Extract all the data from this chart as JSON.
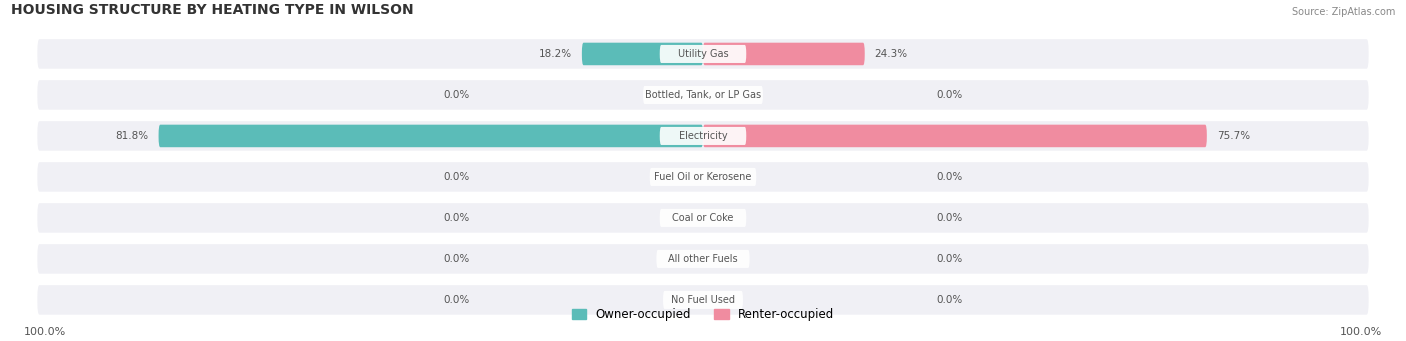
{
  "title": "HOUSING STRUCTURE BY HEATING TYPE IN WILSON",
  "source": "Source: ZipAtlas.com",
  "categories": [
    "Utility Gas",
    "Bottled, Tank, or LP Gas",
    "Electricity",
    "Fuel Oil or Kerosene",
    "Coal or Coke",
    "All other Fuels",
    "No Fuel Used"
  ],
  "owner_values": [
    18.2,
    0.0,
    81.8,
    0.0,
    0.0,
    0.0,
    0.0
  ],
  "renter_values": [
    24.3,
    0.0,
    75.7,
    0.0,
    0.0,
    0.0,
    0.0
  ],
  "owner_color": "#5bbcb8",
  "renter_color": "#f08ca0",
  "bar_bg_color": "#e8e8ee",
  "row_bg_color": "#f0f0f5",
  "owner_label": "Owner-occupied",
  "renter_label": "Renter-occupied",
  "axis_max": 100.0,
  "center_label_color": "#555555",
  "value_label_color": "#555555",
  "title_color": "#333333",
  "figsize": [
    14.06,
    3.41
  ],
  "dpi": 100
}
